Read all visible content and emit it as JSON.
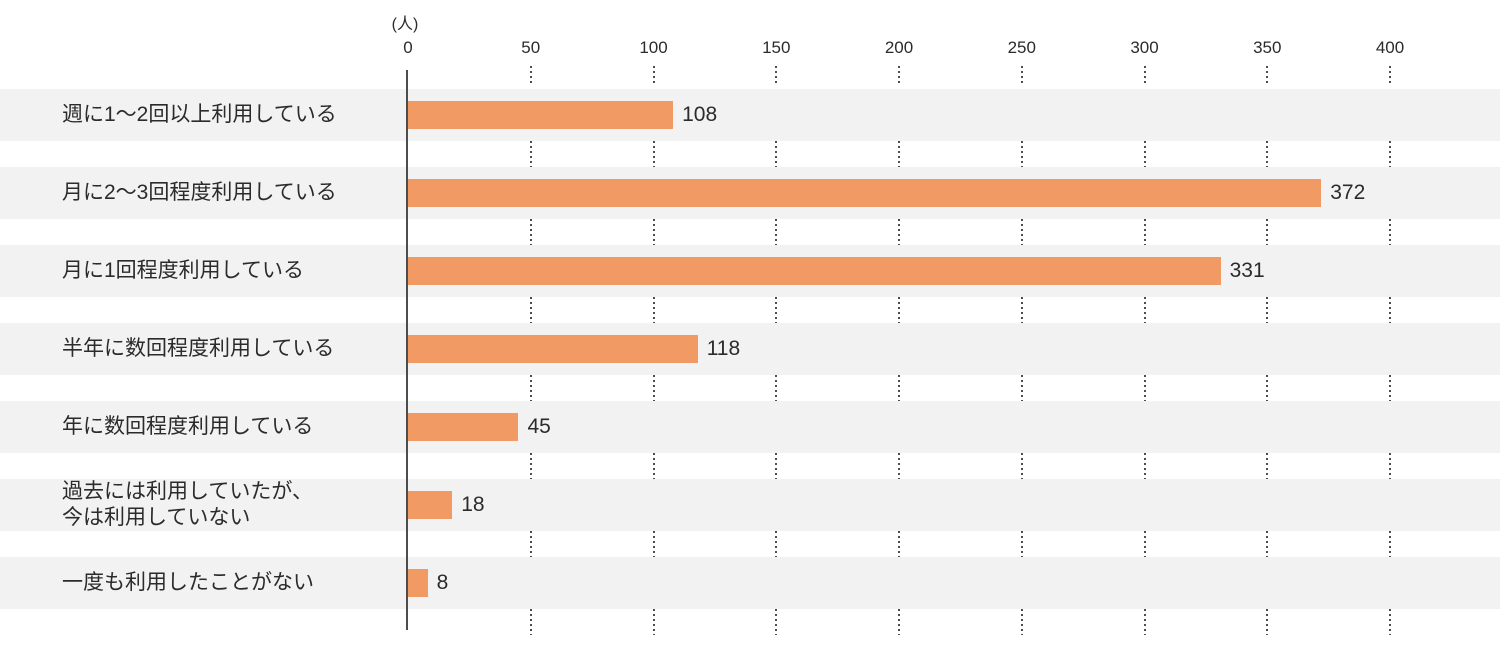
{
  "chart_data": {
    "type": "bar",
    "orientation": "horizontal",
    "title": "",
    "unit": "(人)",
    "categories": [
      "週に1〜2回以上利用している",
      "月に2〜3回程度利用している",
      "月に1回程度利用している",
      "半年に数回程度利用している",
      "年に数回程度利用している",
      "過去には利用していたが、\n今は利用していない",
      "一度も利用したことがない"
    ],
    "values": [
      108,
      372,
      331,
      118,
      45,
      18,
      8
    ],
    "data_labels": [
      "108",
      "372",
      "331",
      "118",
      "45",
      "18",
      "8"
    ],
    "xticks": [
      0,
      50,
      100,
      150,
      200,
      250,
      300,
      350,
      400
    ],
    "xlim": [
      0,
      445
    ],
    "xlabel": "",
    "ylabel": "",
    "legend": "none",
    "grid": "dotted vertical gridlines at ticks, shown only between row bands",
    "colors": {
      "bar": "#F29A63",
      "row_band": "#F2F2F2",
      "text": "#2B2B2B",
      "axis": "#4D4D4D",
      "background": "#FFFFFF"
    }
  }
}
